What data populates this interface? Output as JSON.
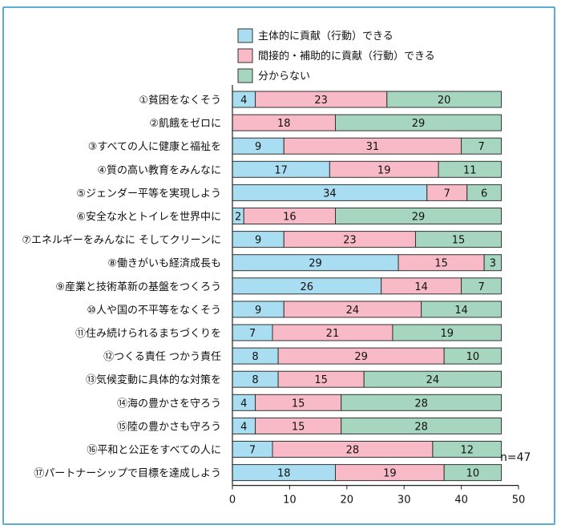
{
  "chart_data": {
    "type": "bar",
    "stacked": true,
    "orientation": "horizontal",
    "categories": [
      "①貧困をなくそう",
      "②飢餓をゼロに",
      "③すべての人に健康と福祉を",
      "④質の高い教育をみんなに",
      "⑤ジェンダー平等を実現しよう",
      "⑥安全な水とトイレを世界中に",
      "⑦エネルギーをみんなに そしてクリーンに",
      "⑧働きがいも経済成長も",
      "⑨産業と技術革新の基盤をつくろう",
      "⑩人や国の不平等をなくそう",
      "⑪住み続けられるまちづくりを",
      "⑫つくる責任 つかう責任",
      "⑬気候変動に具体的な対策を",
      "⑭海の豊かさを守ろう",
      "⑮陸の豊かさも守ろう",
      "⑯平和と公正をすべての人に",
      "⑰パートナーシップで目標を達成しよう"
    ],
    "series": [
      {
        "name": "主体的に貢献（行動）できる",
        "color": "#a9ddf1",
        "values": [
          4,
          0,
          9,
          17,
          34,
          2,
          9,
          29,
          26,
          9,
          7,
          8,
          8,
          4,
          4,
          7,
          18
        ]
      },
      {
        "name": "間接的・補助的に貢献（行動）できる",
        "color": "#f8bac6",
        "values": [
          23,
          18,
          31,
          19,
          7,
          16,
          23,
          15,
          14,
          24,
          21,
          29,
          15,
          15,
          15,
          28,
          19
        ]
      },
      {
        "name": "分からない",
        "color": "#a6d6c0",
        "values": [
          20,
          29,
          7,
          11,
          6,
          29,
          15,
          3,
          7,
          14,
          19,
          10,
          24,
          28,
          28,
          12,
          10
        ]
      }
    ],
    "xlim": [
      0,
      50
    ],
    "xticks": [
      "0",
      "10",
      "20",
      "30",
      "40",
      "50"
    ],
    "legend_position": "top",
    "note": "n=47"
  }
}
